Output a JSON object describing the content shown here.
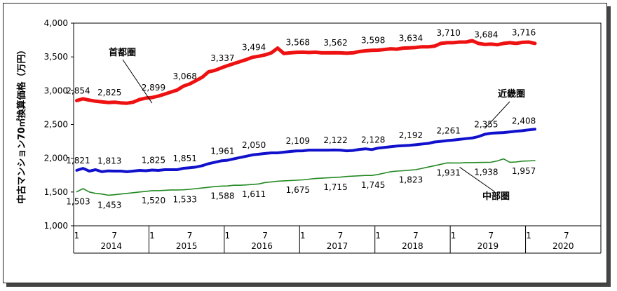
{
  "chart_data": {
    "type": "line",
    "title": "",
    "ylabel": "中古マンション70㎡換算価格（万円）",
    "xlabel": "",
    "ylim": [
      1000,
      4000
    ],
    "yticks": [
      1000,
      1500,
      2000,
      2500,
      3000,
      3500,
      4000
    ],
    "ytick_labels": [
      "1,000",
      "1,500",
      "2,000",
      "2,500",
      "3,000",
      "3,500",
      "4,000"
    ],
    "x_month_ticks": [
      {
        "i": 0,
        "label": "1"
      },
      {
        "i": 6,
        "label": "7"
      },
      {
        "i": 12,
        "label": "1"
      },
      {
        "i": 18,
        "label": "7"
      },
      {
        "i": 24,
        "label": "1"
      },
      {
        "i": 30,
        "label": "7"
      },
      {
        "i": 36,
        "label": "1"
      },
      {
        "i": 42,
        "label": "7"
      },
      {
        "i": 48,
        "label": "1"
      },
      {
        "i": 54,
        "label": "7"
      },
      {
        "i": 60,
        "label": "1"
      },
      {
        "i": 66,
        "label": "7"
      },
      {
        "i": 72,
        "label": "1"
      },
      {
        "i": 78,
        "label": "7"
      }
    ],
    "years": [
      "2014",
      "2015",
      "2016",
      "2017",
      "2018",
      "2019",
      "2020"
    ],
    "months_total": 84,
    "grid": false,
    "series": [
      {
        "name": "首都圏",
        "color": "#ee1111",
        "values": [
          2854,
          2880,
          2860,
          2845,
          2835,
          2825,
          2830,
          2820,
          2815,
          2830,
          2870,
          2890,
          2899,
          2920,
          2950,
          2980,
          3010,
          3068,
          3100,
          3150,
          3200,
          3280,
          3300,
          3337,
          3370,
          3400,
          3430,
          3460,
          3494,
          3510,
          3530,
          3560,
          3630,
          3550,
          3560,
          3568,
          3570,
          3565,
          3570,
          3560,
          3560,
          3562,
          3560,
          3555,
          3560,
          3580,
          3590,
          3598,
          3600,
          3610,
          3620,
          3615,
          3630,
          3634,
          3640,
          3650,
          3650,
          3660,
          3700,
          3710,
          3710,
          3720,
          3720,
          3740,
          3700,
          3684,
          3690,
          3680,
          3700,
          3710,
          3700,
          3716,
          3720,
          3700
        ],
        "labels": [
          {
            "i": 0,
            "text": "2,854"
          },
          {
            "i": 5,
            "text": "2,825"
          },
          {
            "i": 12,
            "text": "2,899"
          },
          {
            "i": 17,
            "text": "3,068"
          },
          {
            "i": 23,
            "text": "3,337"
          },
          {
            "i": 28,
            "text": "3,494"
          },
          {
            "i": 35,
            "text": "3,568"
          },
          {
            "i": 41,
            "text": "3,562"
          },
          {
            "i": 47,
            "text": "3,598"
          },
          {
            "i": 53,
            "text": "3,634"
          },
          {
            "i": 59,
            "text": "3,710"
          },
          {
            "i": 65,
            "text": "3,684"
          },
          {
            "i": 71,
            "text": "3,716"
          }
        ]
      },
      {
        "name": "近畿圏",
        "color": "#1111cc",
        "values": [
          1821,
          1850,
          1810,
          1830,
          1800,
          1813,
          1810,
          1810,
          1800,
          1810,
          1820,
          1815,
          1825,
          1820,
          1830,
          1830,
          1830,
          1851,
          1860,
          1870,
          1890,
          1920,
          1940,
          1961,
          1970,
          1990,
          2010,
          2030,
          2050,
          2060,
          2070,
          2080,
          2080,
          2090,
          2100,
          2109,
          2110,
          2120,
          2120,
          2120,
          2120,
          2122,
          2120,
          2110,
          2115,
          2130,
          2140,
          2128,
          2150,
          2160,
          2170,
          2180,
          2185,
          2192,
          2200,
          2210,
          2220,
          2240,
          2250,
          2261,
          2270,
          2280,
          2290,
          2300,
          2320,
          2355,
          2370,
          2375,
          2380,
          2390,
          2400,
          2408,
          2420,
          2430
        ],
        "labels": [
          {
            "i": 0,
            "text": "1,821"
          },
          {
            "i": 5,
            "text": "1,813"
          },
          {
            "i": 12,
            "text": "1,825"
          },
          {
            "i": 17,
            "text": "1,851"
          },
          {
            "i": 23,
            "text": "1,961"
          },
          {
            "i": 28,
            "text": "2,050"
          },
          {
            "i": 35,
            "text": "2,109"
          },
          {
            "i": 41,
            "text": "2,122"
          },
          {
            "i": 47,
            "text": "2,128"
          },
          {
            "i": 53,
            "text": "2,192"
          },
          {
            "i": 59,
            "text": "2,261"
          },
          {
            "i": 65,
            "text": "2,355"
          },
          {
            "i": 71,
            "text": "2,408"
          }
        ]
      },
      {
        "name": "中部圏",
        "color": "#228822",
        "values": [
          1503,
          1550,
          1500,
          1480,
          1470,
          1453,
          1460,
          1470,
          1480,
          1490,
          1500,
          1510,
          1520,
          1520,
          1525,
          1530,
          1530,
          1533,
          1540,
          1550,
          1560,
          1570,
          1580,
          1588,
          1590,
          1600,
          1600,
          1605,
          1611,
          1620,
          1640,
          1650,
          1660,
          1665,
          1670,
          1675,
          1680,
          1690,
          1700,
          1705,
          1710,
          1715,
          1720,
          1730,
          1735,
          1740,
          1745,
          1745,
          1760,
          1780,
          1800,
          1810,
          1815,
          1823,
          1830,
          1850,
          1870,
          1890,
          1910,
          1931,
          1930,
          1930,
          1935,
          1935,
          1937,
          1938,
          1940,
          1960,
          1990,
          1940,
          1945,
          1957,
          1960,
          1965
        ],
        "labels": [
          {
            "i": 0,
            "text": "1,503"
          },
          {
            "i": 5,
            "text": "1,453"
          },
          {
            "i": 12,
            "text": "1,520"
          },
          {
            "i": 17,
            "text": "1,533"
          },
          {
            "i": 23,
            "text": "1,588"
          },
          {
            "i": 28,
            "text": "1,611"
          },
          {
            "i": 35,
            "text": "1,675"
          },
          {
            "i": 41,
            "text": "1,715"
          },
          {
            "i": 47,
            "text": "1,745"
          },
          {
            "i": 53,
            "text": "1,823"
          },
          {
            "i": 59,
            "text": "1,931"
          },
          {
            "i": 65,
            "text": "1,938"
          },
          {
            "i": 71,
            "text": "1,957"
          }
        ]
      }
    ]
  }
}
